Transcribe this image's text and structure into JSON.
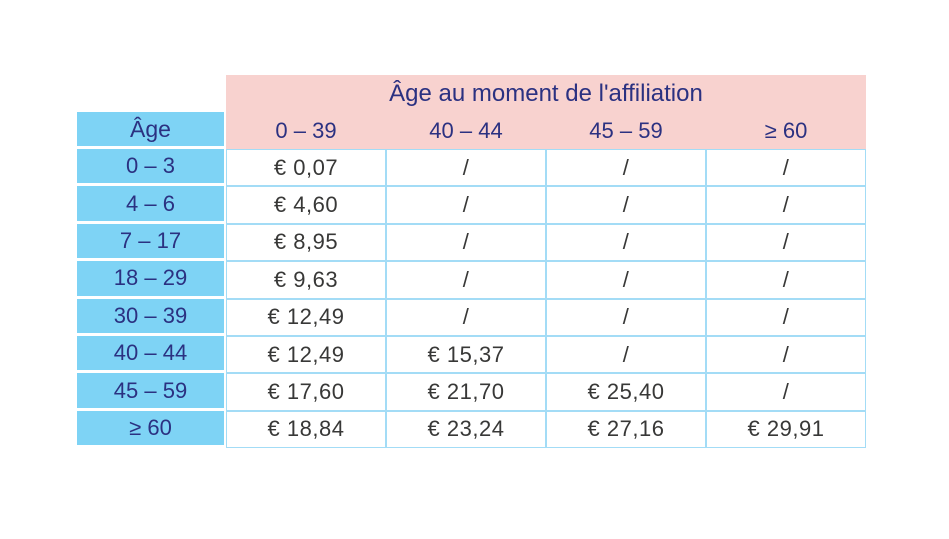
{
  "chart_data": {
    "type": "table",
    "title": "Âge au moment de l'affiliation",
    "corner_label": "Âge",
    "columns": [
      "0 – 39",
      "40 – 44",
      "45 – 59",
      "≥ 60"
    ],
    "rows": [
      {
        "label": "0 – 3",
        "values": [
          "€ 0,07",
          "/",
          "/",
          "/"
        ]
      },
      {
        "label": "4 – 6",
        "values": [
          "€ 4,60",
          "/",
          "/",
          "/"
        ]
      },
      {
        "label": "7 – 17",
        "values": [
          "€ 8,95",
          "/",
          "/",
          "/"
        ]
      },
      {
        "label": "18 – 29",
        "values": [
          "€ 9,63",
          "/",
          "/",
          "/"
        ]
      },
      {
        "label": "30 – 39",
        "values": [
          "€ 12,49",
          "/",
          "/",
          "/"
        ]
      },
      {
        "label": "40 – 44",
        "values": [
          "€ 12,49",
          "€ 15,37",
          "/",
          "/"
        ]
      },
      {
        "label": "45 – 59",
        "values": [
          "€ 17,60",
          "€ 21,70",
          "€ 25,40",
          "/"
        ]
      },
      {
        "label": "≥ 60",
        "values": [
          "€ 18,84",
          "€ 23,24",
          "€ 27,16",
          "€ 29,91"
        ]
      }
    ]
  },
  "colors": {
    "header_pink": "#f8d2cf",
    "row_header_blue": "#7ed3f5",
    "heading_text_navy": "#2b3181",
    "value_text": "#383837",
    "grid_border": "#a3dcf6",
    "background": "#ffffff"
  }
}
